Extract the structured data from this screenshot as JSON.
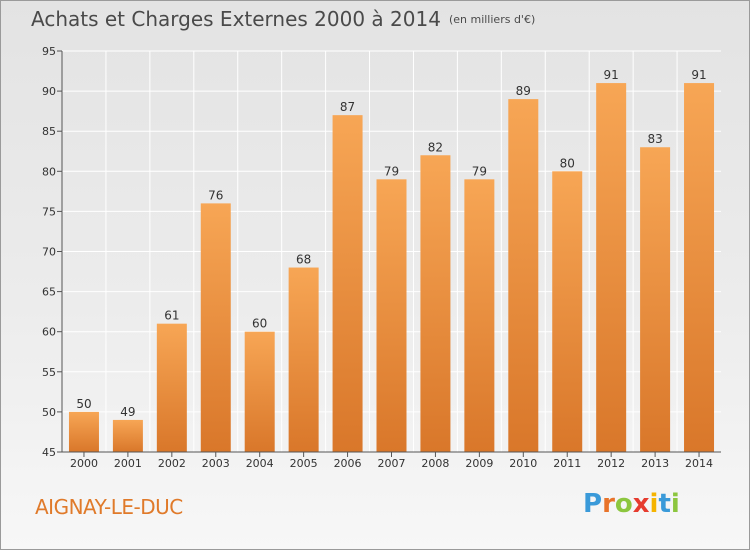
{
  "header": {
    "title": "Achats et Charges Externes 2000 à 2014",
    "unit": "(en milliers d'€)"
  },
  "footer": {
    "commune": "AIGNAY-LE-DUC",
    "logo_letters": [
      "P",
      "r",
      "o",
      "x",
      "i",
      "t",
      "i"
    ],
    "logo_colors": [
      "#3a9ad9",
      "#e8732a",
      "#8cc63f",
      "#e63b2e",
      "#f5b400",
      "#3a9ad9",
      "#8cc63f"
    ]
  },
  "colors": {
    "bar_top": "#f7a655",
    "bar_bottom": "#d9772a",
    "grid": "#ffffff",
    "axis": "#555555",
    "text": "#333333",
    "commune": "#e07a2a"
  },
  "chart_data": {
    "type": "bar",
    "title": "Achats et Charges Externes 2000 à 2014",
    "subtitle": "(en milliers d'€)",
    "categories": [
      "2000",
      "2001",
      "2002",
      "2003",
      "2004",
      "2005",
      "2006",
      "2007",
      "2008",
      "2009",
      "2010",
      "2011",
      "2012",
      "2013",
      "2014"
    ],
    "values": [
      50,
      49,
      61,
      76,
      60,
      68,
      87,
      79,
      82,
      79,
      89,
      80,
      91,
      83,
      91
    ],
    "data_labels": [
      "50",
      "49",
      "61",
      "76",
      "60",
      "68",
      "87",
      "79",
      "82",
      "79",
      "89",
      "80",
      "91",
      "83",
      "91"
    ],
    "ylim": [
      45,
      95
    ],
    "yticks": [
      45,
      50,
      55,
      60,
      65,
      70,
      75,
      80,
      85,
      90,
      95
    ],
    "xlabel": "",
    "ylabel": "",
    "grid": true
  }
}
